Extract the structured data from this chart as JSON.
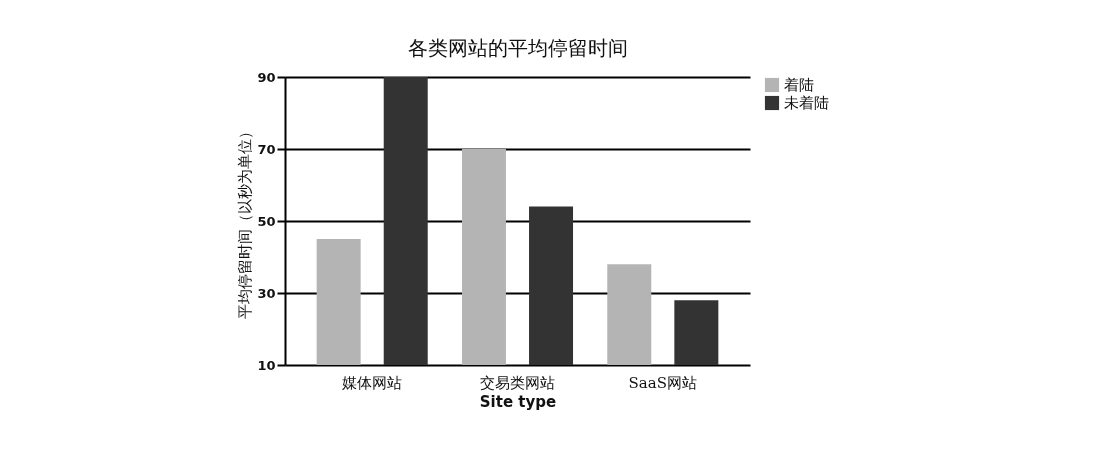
{
  "chart_data": {
    "type": "bar",
    "title": "各类网站的平均停留时间",
    "xlabel": "Site type",
    "ylabel": "平均停留时间（以秒为单位）",
    "categories": [
      "媒体网站",
      "交易类网站",
      "SaaS网站"
    ],
    "series": [
      {
        "name": "着陆",
        "color": "#b4b4b4",
        "values": [
          45,
          70,
          38
        ]
      },
      {
        "name": "未着陆",
        "color": "#333333",
        "values": [
          90,
          54,
          28
        ]
      }
    ],
    "ylim": [
      10,
      90
    ],
    "yticks": [
      10,
      30,
      50,
      70,
      90
    ],
    "grid": "y",
    "legend": "top right"
  }
}
